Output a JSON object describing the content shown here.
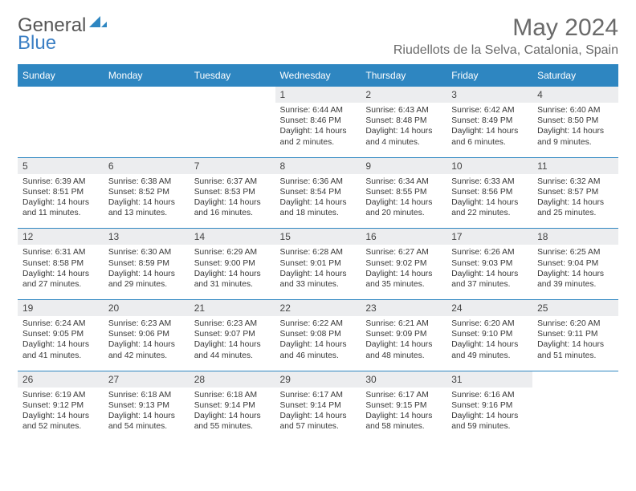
{
  "brand": {
    "part1": "General",
    "part2": "Blue"
  },
  "title": "May 2024",
  "location": "Riudellots de la Selva, Catalonia, Spain",
  "colors": {
    "header_bg": "#2e86c1",
    "header_text": "#ffffff",
    "daynum_bg": "#ecedef",
    "rule": "#2e86c1",
    "logo_blue": "#3b7fc4",
    "text": "#333333"
  },
  "day_headers": [
    "Sunday",
    "Monday",
    "Tuesday",
    "Wednesday",
    "Thursday",
    "Friday",
    "Saturday"
  ],
  "weeks": [
    [
      null,
      null,
      null,
      {
        "n": "1",
        "sr": "6:44 AM",
        "ss": "8:46 PM",
        "dl": "14 hours and 2 minutes."
      },
      {
        "n": "2",
        "sr": "6:43 AM",
        "ss": "8:48 PM",
        "dl": "14 hours and 4 minutes."
      },
      {
        "n": "3",
        "sr": "6:42 AM",
        "ss": "8:49 PM",
        "dl": "14 hours and 6 minutes."
      },
      {
        "n": "4",
        "sr": "6:40 AM",
        "ss": "8:50 PM",
        "dl": "14 hours and 9 minutes."
      }
    ],
    [
      {
        "n": "5",
        "sr": "6:39 AM",
        "ss": "8:51 PM",
        "dl": "14 hours and 11 minutes."
      },
      {
        "n": "6",
        "sr": "6:38 AM",
        "ss": "8:52 PM",
        "dl": "14 hours and 13 minutes."
      },
      {
        "n": "7",
        "sr": "6:37 AM",
        "ss": "8:53 PM",
        "dl": "14 hours and 16 minutes."
      },
      {
        "n": "8",
        "sr": "6:36 AM",
        "ss": "8:54 PM",
        "dl": "14 hours and 18 minutes."
      },
      {
        "n": "9",
        "sr": "6:34 AM",
        "ss": "8:55 PM",
        "dl": "14 hours and 20 minutes."
      },
      {
        "n": "10",
        "sr": "6:33 AM",
        "ss": "8:56 PM",
        "dl": "14 hours and 22 minutes."
      },
      {
        "n": "11",
        "sr": "6:32 AM",
        "ss": "8:57 PM",
        "dl": "14 hours and 25 minutes."
      }
    ],
    [
      {
        "n": "12",
        "sr": "6:31 AM",
        "ss": "8:58 PM",
        "dl": "14 hours and 27 minutes."
      },
      {
        "n": "13",
        "sr": "6:30 AM",
        "ss": "8:59 PM",
        "dl": "14 hours and 29 minutes."
      },
      {
        "n": "14",
        "sr": "6:29 AM",
        "ss": "9:00 PM",
        "dl": "14 hours and 31 minutes."
      },
      {
        "n": "15",
        "sr": "6:28 AM",
        "ss": "9:01 PM",
        "dl": "14 hours and 33 minutes."
      },
      {
        "n": "16",
        "sr": "6:27 AM",
        "ss": "9:02 PM",
        "dl": "14 hours and 35 minutes."
      },
      {
        "n": "17",
        "sr": "6:26 AM",
        "ss": "9:03 PM",
        "dl": "14 hours and 37 minutes."
      },
      {
        "n": "18",
        "sr": "6:25 AM",
        "ss": "9:04 PM",
        "dl": "14 hours and 39 minutes."
      }
    ],
    [
      {
        "n": "19",
        "sr": "6:24 AM",
        "ss": "9:05 PM",
        "dl": "14 hours and 41 minutes."
      },
      {
        "n": "20",
        "sr": "6:23 AM",
        "ss": "9:06 PM",
        "dl": "14 hours and 42 minutes."
      },
      {
        "n": "21",
        "sr": "6:23 AM",
        "ss": "9:07 PM",
        "dl": "14 hours and 44 minutes."
      },
      {
        "n": "22",
        "sr": "6:22 AM",
        "ss": "9:08 PM",
        "dl": "14 hours and 46 minutes."
      },
      {
        "n": "23",
        "sr": "6:21 AM",
        "ss": "9:09 PM",
        "dl": "14 hours and 48 minutes."
      },
      {
        "n": "24",
        "sr": "6:20 AM",
        "ss": "9:10 PM",
        "dl": "14 hours and 49 minutes."
      },
      {
        "n": "25",
        "sr": "6:20 AM",
        "ss": "9:11 PM",
        "dl": "14 hours and 51 minutes."
      }
    ],
    [
      {
        "n": "26",
        "sr": "6:19 AM",
        "ss": "9:12 PM",
        "dl": "14 hours and 52 minutes."
      },
      {
        "n": "27",
        "sr": "6:18 AM",
        "ss": "9:13 PM",
        "dl": "14 hours and 54 minutes."
      },
      {
        "n": "28",
        "sr": "6:18 AM",
        "ss": "9:14 PM",
        "dl": "14 hours and 55 minutes."
      },
      {
        "n": "29",
        "sr": "6:17 AM",
        "ss": "9:14 PM",
        "dl": "14 hours and 57 minutes."
      },
      {
        "n": "30",
        "sr": "6:17 AM",
        "ss": "9:15 PM",
        "dl": "14 hours and 58 minutes."
      },
      {
        "n": "31",
        "sr": "6:16 AM",
        "ss": "9:16 PM",
        "dl": "14 hours and 59 minutes."
      },
      null
    ]
  ],
  "labels": {
    "sunrise": "Sunrise:",
    "sunset": "Sunset:",
    "daylight": "Daylight:"
  }
}
